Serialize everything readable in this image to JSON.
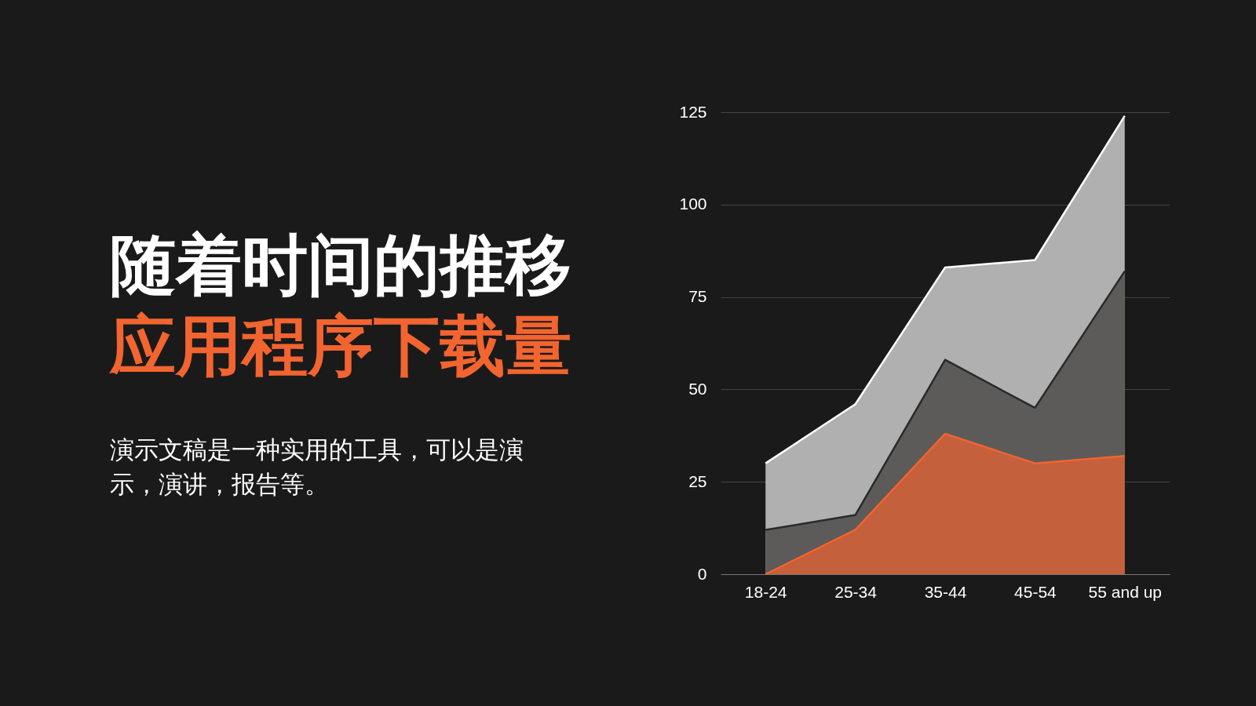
{
  "chart_data": {
    "type": "area",
    "title": "随着时间的推移",
    "subtitle": "应用程序下载量",
    "annotations": [
      "演示文稿是一种实用的工具，可以是演示，演讲，报告等。"
    ],
    "categories": [
      "18-24",
      "25-34",
      "35-44",
      "45-54",
      "55 and up"
    ],
    "series": [
      {
        "color": "#b0b0b0",
        "values": [
          30,
          46,
          83,
          85,
          124
        ]
      },
      {
        "color": "#5c5b59",
        "values": [
          12,
          16,
          58,
          45,
          82
        ]
      },
      {
        "color": "#c4603c",
        "values": [
          0,
          12,
          38,
          30,
          32
        ]
      }
    ],
    "ylim": [
      0,
      125
    ],
    "yticks": [
      0,
      25,
      50,
      75,
      100,
      125
    ],
    "grid": "y"
  }
}
